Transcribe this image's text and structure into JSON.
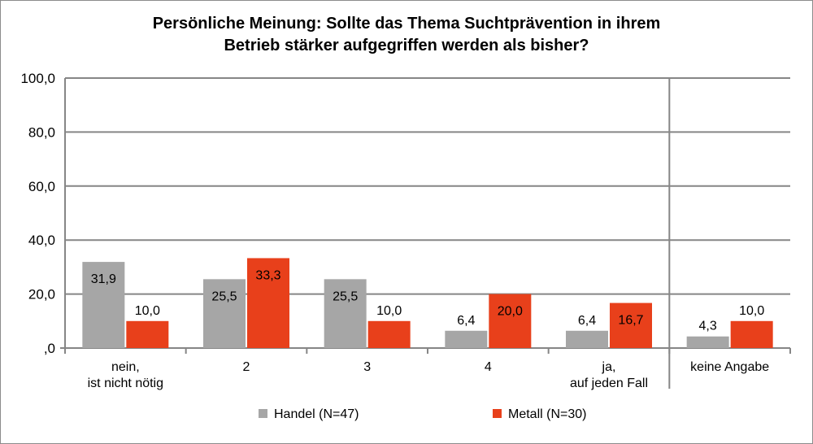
{
  "chart_data": {
    "type": "bar",
    "title_lines": [
      "Persönliche Meinung: Sollte das Thema Suchtprävention in ihrem",
      "Betrieb stärker aufgegriffen werden als bisher?"
    ],
    "categories": [
      [
        "nein,",
        "ist nicht nötig"
      ],
      [
        "2"
      ],
      [
        "3"
      ],
      [
        "4"
      ],
      [
        "ja,",
        "auf jeden Fall"
      ],
      [
        "keine Angabe"
      ]
    ],
    "series": [
      {
        "name": "Handel (N=47)",
        "color": "#a6a6a6",
        "values": [
          31.9,
          25.5,
          25.5,
          6.4,
          6.4,
          4.3
        ],
        "labels": [
          "31,9",
          "25,5",
          "25,5",
          "6,4",
          "6,4",
          "4,3"
        ]
      },
      {
        "name": "Metall (N=30)",
        "color": "#e8401b",
        "values": [
          10.0,
          33.3,
          10.0,
          20.0,
          16.7,
          10.0
        ],
        "labels": [
          "10,0",
          "33,3",
          "10,0",
          "20,0",
          "16,7",
          "10,0"
        ]
      }
    ],
    "yticks": [
      0,
      20,
      40,
      60,
      80,
      100
    ],
    "ytick_labels": [
      ",0",
      "20,0",
      "40,0",
      "60,0",
      "80,0",
      "100,0"
    ],
    "ylim": [
      0,
      100
    ],
    "grid": true,
    "separator_before_category": 5,
    "legend_position": "bottom"
  }
}
